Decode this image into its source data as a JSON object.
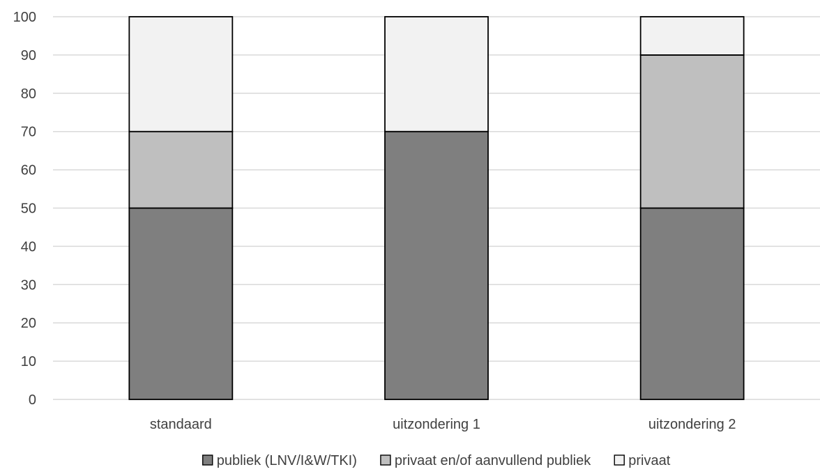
{
  "chart_data": {
    "type": "bar",
    "stacked": true,
    "categories": [
      "standaard",
      "uitzondering 1",
      "uitzondering 2"
    ],
    "series": [
      {
        "name": "publiek (LNV/I&W/TKI)",
        "values": [
          50,
          70,
          50
        ],
        "color": "#7f7f7f"
      },
      {
        "name": "privaat en/of aanvullend publiek",
        "values": [
          20,
          0,
          40
        ],
        "color": "#bfbfbf"
      },
      {
        "name": "privaat",
        "values": [
          30,
          30,
          10
        ],
        "color": "#f2f2f2"
      }
    ],
    "ylim": [
      0,
      100
    ],
    "yticks": [
      0,
      10,
      20,
      30,
      40,
      50,
      60,
      70,
      80,
      90,
      100
    ],
    "grid": true,
    "legend_position": "bottom",
    "gridline_color": "#d9d9d9",
    "bar_outline_color": "#000000"
  }
}
